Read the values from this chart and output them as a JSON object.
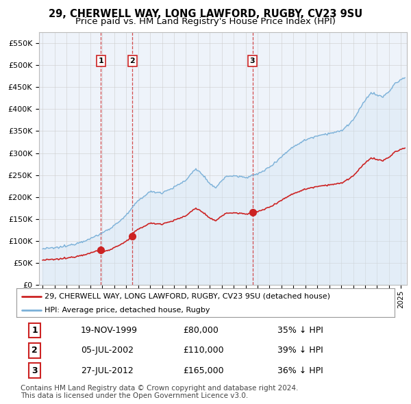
{
  "title": "29, CHERWELL WAY, LONG LAWFORD, RUGBY, CV23 9SU",
  "subtitle": "Price paid vs. HM Land Registry's House Price Index (HPI)",
  "ylabel_ticks": [
    "£0",
    "£50K",
    "£100K",
    "£150K",
    "£200K",
    "£250K",
    "£300K",
    "£350K",
    "£400K",
    "£450K",
    "£500K",
    "£550K"
  ],
  "ytick_values": [
    0,
    50000,
    100000,
    150000,
    200000,
    250000,
    300000,
    350000,
    400000,
    450000,
    500000,
    550000
  ],
  "ylim": [
    0,
    575000
  ],
  "xlim_start": 1994.7,
  "xlim_end": 2025.5,
  "hpi_color": "#7ab0d8",
  "hpi_fill_color": "#d0e4f4",
  "price_color": "#cc2222",
  "grid_color": "#cccccc",
  "chart_bg_color": "#eef3fa",
  "title_fontsize": 10.5,
  "subtitle_fontsize": 9.5,
  "sales": [
    {
      "date_num": 1999.88,
      "price": 80000,
      "label": "1"
    },
    {
      "date_num": 2002.51,
      "price": 110000,
      "label": "2"
    },
    {
      "date_num": 2012.57,
      "price": 165000,
      "label": "3"
    }
  ],
  "sale_vlines": [
    1999.88,
    2002.51,
    2012.57
  ],
  "hpi_anchors": {
    "1995.0": 82000,
    "1996.0": 84000,
    "1997.0": 88000,
    "1998.0": 96000,
    "1999.0": 105000,
    "2000.0": 118000,
    "2001.0": 135000,
    "2002.0": 158000,
    "2003.0": 192000,
    "2004.0": 212000,
    "2005.0": 210000,
    "2006.0": 222000,
    "2007.0": 238000,
    "2007.8": 265000,
    "2008.5": 248000,
    "2009.0": 228000,
    "2009.5": 222000,
    "2010.0": 238000,
    "2010.5": 248000,
    "2011.0": 248000,
    "2012.0": 245000,
    "2013.0": 252000,
    "2014.0": 268000,
    "2015.0": 292000,
    "2016.0": 315000,
    "2017.0": 330000,
    "2018.0": 340000,
    "2019.0": 345000,
    "2020.0": 350000,
    "2021.0": 375000,
    "2022.0": 420000,
    "2022.5": 438000,
    "2023.0": 432000,
    "2023.5": 428000,
    "2024.0": 440000,
    "2024.5": 458000,
    "2025.3": 472000
  },
  "table_rows": [
    [
      "1",
      "19-NOV-1999",
      "£80,000",
      "35% ↓ HPI"
    ],
    [
      "2",
      "05-JUL-2002",
      "£110,000",
      "39% ↓ HPI"
    ],
    [
      "3",
      "27-JUL-2012",
      "£165,000",
      "36% ↓ HPI"
    ]
  ],
  "footer_text": "Contains HM Land Registry data © Crown copyright and database right 2024.\nThis data is licensed under the Open Government Licence v3.0.",
  "legend_entries": [
    "29, CHERWELL WAY, LONG LAWFORD, RUGBY, CV23 9SU (detached house)",
    "HPI: Average price, detached house, Rugby"
  ]
}
